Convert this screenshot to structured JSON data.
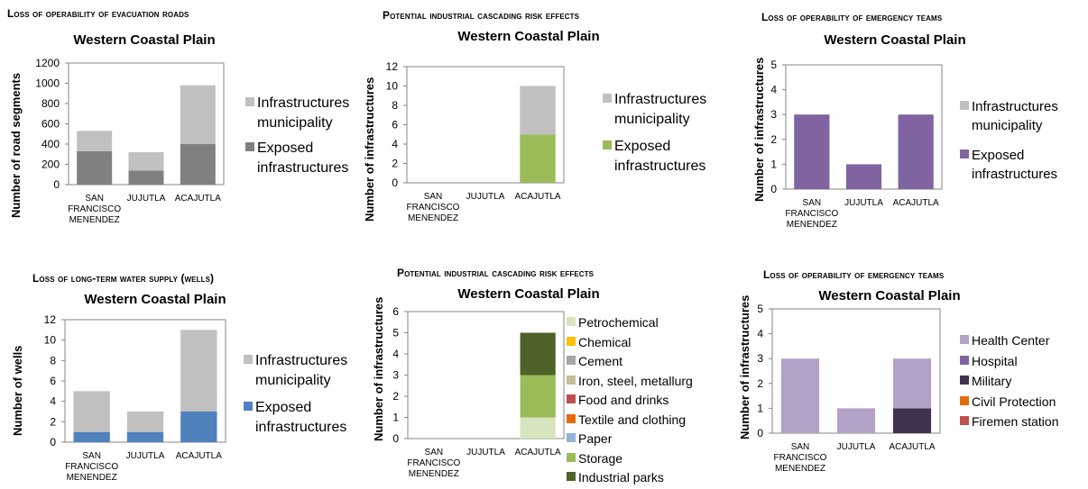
{
  "panels": [
    {
      "supertitle": "Loss of operability of evacuation roads",
      "title": "Western Coastal  Plain",
      "ylabel": "Number of road segments",
      "legend_font": 16
    },
    {
      "supertitle": "Potential industrial cascading risk effects",
      "title": "Western Coastal  Plain",
      "ylabel": "Number of infrastructures",
      "legend_font": 16
    },
    {
      "supertitle": "Loss of operability of emergency teams",
      "title": "Western Coastal  Plain",
      "ylabel": "Number of infrastructures",
      "legend_font": 15
    },
    {
      "supertitle": "Loss of long-term water supply (wells)",
      "title": "Western Coastal  Plain",
      "ylabel": "Number of wells",
      "legend_font": 16
    },
    {
      "supertitle": "Potential industrial cascading risk effects",
      "title": "Western Coastal  Plain",
      "ylabel": "Number of infrastructures",
      "legend_font": 14
    },
    {
      "supertitle": "Loss of operability of emergency teams",
      "title": "Western Coastal  Plain",
      "ylabel": "Number of infrastructures",
      "legend_font": 14
    }
  ],
  "chart_data": [
    {
      "type": "bar",
      "stacked": true,
      "title": "Western Coastal  Plain",
      "ylabel": "Number of road segments",
      "categories": [
        "SAN FRANCISCO MENENDEZ",
        "JUJUTLA",
        "ACAJUTLA"
      ],
      "ylim": [
        0,
        1200
      ],
      "yticks": [
        0,
        200,
        400,
        600,
        800,
        1000,
        1200
      ],
      "series": [
        {
          "name": "Exposed infrastructures",
          "color": "#808080",
          "values": [
            330,
            140,
            400
          ]
        },
        {
          "name": "Infrastructures municipality",
          "color": "#c0c0c0",
          "values": [
            200,
            180,
            580
          ]
        }
      ],
      "legend": [
        {
          "label": "Infrastructures municipality",
          "color": "#c0c0c0"
        },
        {
          "label": "Exposed infrastructures",
          "color": "#808080"
        }
      ]
    },
    {
      "type": "bar",
      "stacked": true,
      "title": "Western Coastal  Plain",
      "ylabel": "Number of infrastructures",
      "categories": [
        "SAN FRANCISCO MENENDEZ",
        "JUJUTLA",
        "ACAJUTLA"
      ],
      "ylim": [
        0,
        12
      ],
      "yticks": [
        0,
        2,
        4,
        6,
        8,
        10,
        12
      ],
      "series": [
        {
          "name": "Exposed infrastructures",
          "color": "#9bbb59",
          "values": [
            0,
            0,
            5
          ]
        },
        {
          "name": "Infrastructures municipality",
          "color": "#c0c0c0",
          "values": [
            0,
            0,
            5
          ]
        }
      ],
      "legend": [
        {
          "label": "Infrastructures municipality",
          "color": "#c0c0c0"
        },
        {
          "label": "Exposed infrastructures",
          "color": "#9bbb59"
        }
      ]
    },
    {
      "type": "bar",
      "stacked": true,
      "title": "Western Coastal  Plain",
      "ylabel": "Number of infrastructures",
      "categories": [
        "SAN FRANCISCO MENENDEZ",
        "JUJUTLA",
        "ACAJUTLA"
      ],
      "ylim": [
        0,
        5
      ],
      "yticks": [
        0,
        1,
        2,
        3,
        4,
        5
      ],
      "series": [
        {
          "name": "Exposed infrastructures",
          "color": "#8064a2",
          "values": [
            3,
            1,
            3
          ]
        },
        {
          "name": "Infrastructures municipality",
          "color": "#c0c0c0",
          "values": [
            0,
            0,
            0
          ]
        }
      ],
      "legend": [
        {
          "label": "Infrastructures municipality",
          "color": "#c0c0c0"
        },
        {
          "label": "Exposed infrastructures",
          "color": "#8064a2"
        }
      ]
    },
    {
      "type": "bar",
      "stacked": true,
      "title": "Western Coastal  Plain",
      "ylabel": "Number of wells",
      "categories": [
        "SAN FRANCISCO MENENDEZ",
        "JUJUTLA",
        "ACAJUTLA"
      ],
      "ylim": [
        0,
        12
      ],
      "yticks": [
        0,
        2,
        4,
        6,
        8,
        10,
        12
      ],
      "series": [
        {
          "name": "Exposed infrastructures",
          "color": "#4f81bd",
          "values": [
            1,
            1,
            3
          ]
        },
        {
          "name": "Infrastructures municipality",
          "color": "#c0c0c0",
          "values": [
            4,
            2,
            8
          ]
        }
      ],
      "legend": [
        {
          "label": "Infrastructures municipality",
          "color": "#c0c0c0"
        },
        {
          "label": "Exposed infrastructures",
          "color": "#4f81bd"
        }
      ]
    },
    {
      "type": "bar",
      "stacked": true,
      "title": "Western Coastal  Plain",
      "ylabel": "Number of infrastructures",
      "categories": [
        "SAN FRANCISCO MENENDEZ",
        "JUJUTLA",
        "ACAJUTLA"
      ],
      "ylim": [
        0,
        6
      ],
      "yticks": [
        0,
        1,
        2,
        3,
        4,
        5,
        6
      ],
      "series": [
        {
          "name": "Petrochemical",
          "color": "#d7e4bd",
          "values": [
            0,
            0,
            1
          ]
        },
        {
          "name": "Chemical",
          "color": "#ffc000",
          "values": [
            0,
            0,
            0
          ]
        },
        {
          "name": "Cement",
          "color": "#a5a5a5",
          "values": [
            0,
            0,
            0
          ]
        },
        {
          "name": "Iron, steel, metallurg",
          "color": "#c4bd97",
          "values": [
            0,
            0,
            0
          ]
        },
        {
          "name": "Food and drinks",
          "color": "#c0504d",
          "values": [
            0,
            0,
            0
          ]
        },
        {
          "name": "Textile and clothing",
          "color": "#e46c0a",
          "values": [
            0,
            0,
            0
          ]
        },
        {
          "name": "Paper",
          "color": "#95b3d7",
          "values": [
            0,
            0,
            0
          ]
        },
        {
          "name": "Storage",
          "color": "#9bbb59",
          "values": [
            0,
            0,
            2
          ]
        },
        {
          "name": "Industrial parks",
          "color": "#4f6228",
          "values": [
            0,
            0,
            2
          ]
        }
      ],
      "legend": [
        {
          "label": "Petrochemical",
          "color": "#d7e4bd"
        },
        {
          "label": "Chemical",
          "color": "#ffc000"
        },
        {
          "label": "Cement",
          "color": "#a5a5a5"
        },
        {
          "label": "Iron, steel, metallurg",
          "color": "#c4bd97"
        },
        {
          "label": "Food and drinks",
          "color": "#c0504d"
        },
        {
          "label": "Textile and clothing",
          "color": "#e46c0a"
        },
        {
          "label": "Paper",
          "color": "#95b3d7"
        },
        {
          "label": "Storage",
          "color": "#9bbb59"
        },
        {
          "label": "Industrial parks",
          "color": "#4f6228"
        }
      ]
    },
    {
      "type": "bar",
      "stacked": true,
      "title": "Western Coastal  Plain",
      "ylabel": "Number of infrastructures",
      "categories": [
        "SAN FRANCISCO MENENDEZ",
        "JUJUTLA",
        "ACAJUTLA"
      ],
      "ylim": [
        0,
        5
      ],
      "yticks": [
        0,
        1,
        2,
        3,
        4,
        5
      ],
      "series": [
        {
          "name": "Military",
          "color": "#403151",
          "values": [
            0,
            0,
            1
          ]
        },
        {
          "name": "Health Center",
          "color": "#b3a2c7",
          "values": [
            3,
            1,
            2
          ]
        },
        {
          "name": "Hospital",
          "color": "#8064a2",
          "values": [
            0,
            0,
            0
          ]
        },
        {
          "name": "Civil Protection",
          "color": "#e46c0a",
          "values": [
            0,
            0,
            0
          ]
        },
        {
          "name": "Firemen station",
          "color": "#c0504d",
          "values": [
            0,
            0,
            0
          ]
        }
      ],
      "legend": [
        {
          "label": "Health Center",
          "color": "#b3a2c7"
        },
        {
          "label": "Hospital",
          "color": "#8064a2"
        },
        {
          "label": "Military",
          "color": "#403151"
        },
        {
          "label": "Civil Protection",
          "color": "#e46c0a"
        },
        {
          "label": "Firemen station",
          "color": "#c0504d"
        }
      ]
    }
  ]
}
